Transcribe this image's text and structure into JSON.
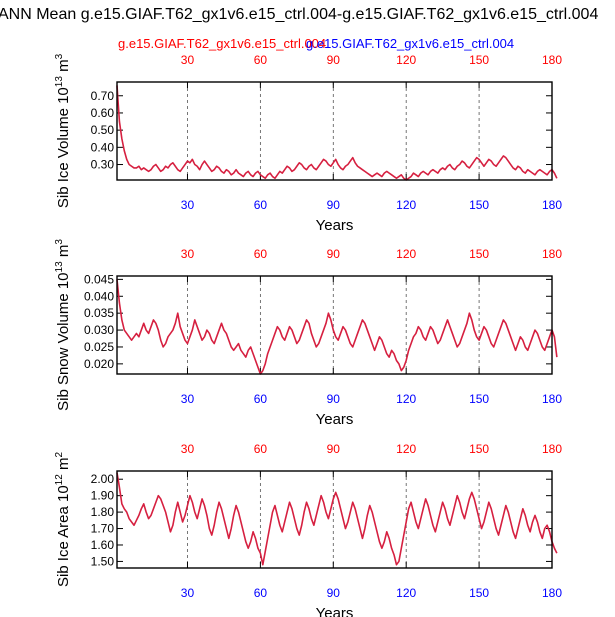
{
  "page": {
    "title": "ANN Mean g.e15.GIAF.T62_gx1v6.e15_ctrl.004-g.e15.GIAF.T62_gx1v6.e15_ctrl.004",
    "subtitle_left": "g.e15.GIAF.T62_gx1v6.e15_ctrl.004",
    "subtitle_right": "g.e15.GIAF.T62_gx1v6.e15_ctrl.004"
  },
  "colors": {
    "series": "#d62040",
    "top_axis": "#ff0000",
    "bottom_axis": "#0000ff",
    "gridline": "#555555"
  },
  "chart_data": [
    {
      "type": "line",
      "title": "",
      "xlabel": "Years",
      "ylabel": "Sib Ice Volume",
      "ylabel_unit_power": "13",
      "ylabel_unit_base": "10",
      "ylabel_unit": "m",
      "ylabel_unit_exp": "3",
      "xlim": [
        1,
        180
      ],
      "ylim": [
        0.21,
        0.78
      ],
      "xticks": [
        30,
        60,
        90,
        120,
        150,
        180
      ],
      "yticks": [
        0.3,
        0.4,
        0.5,
        0.6,
        0.7
      ],
      "ytick_labels": [
        "0.30",
        "0.40",
        "0.50",
        "0.60",
        "0.70"
      ],
      "grid": "dashed vertical at x ticks",
      "series": [
        {
          "name": "g.e15.GIAF.T62_gx1v6.e15_ctrl.004",
          "x_start": 1,
          "values": [
            0.76,
            0.55,
            0.45,
            0.38,
            0.33,
            0.3,
            0.29,
            0.28,
            0.28,
            0.29,
            0.27,
            0.28,
            0.27,
            0.26,
            0.27,
            0.29,
            0.3,
            0.28,
            0.26,
            0.27,
            0.29,
            0.28,
            0.3,
            0.31,
            0.29,
            0.27,
            0.26,
            0.28,
            0.3,
            0.32,
            0.31,
            0.33,
            0.3,
            0.29,
            0.27,
            0.3,
            0.32,
            0.3,
            0.28,
            0.26,
            0.27,
            0.29,
            0.28,
            0.26,
            0.25,
            0.27,
            0.26,
            0.24,
            0.25,
            0.27,
            0.25,
            0.24,
            0.23,
            0.25,
            0.26,
            0.24,
            0.23,
            0.25,
            0.26,
            0.24,
            0.23,
            0.22,
            0.24,
            0.25,
            0.23,
            0.22,
            0.24,
            0.26,
            0.25,
            0.27,
            0.29,
            0.28,
            0.26,
            0.27,
            0.29,
            0.31,
            0.3,
            0.28,
            0.27,
            0.29,
            0.3,
            0.28,
            0.27,
            0.29,
            0.31,
            0.33,
            0.32,
            0.3,
            0.29,
            0.31,
            0.33,
            0.3,
            0.28,
            0.27,
            0.29,
            0.3,
            0.32,
            0.34,
            0.31,
            0.29,
            0.28,
            0.27,
            0.26,
            0.25,
            0.24,
            0.23,
            0.24,
            0.25,
            0.24,
            0.23,
            0.25,
            0.26,
            0.25,
            0.24,
            0.23,
            0.22,
            0.23,
            0.24,
            0.22,
            0.21,
            0.22,
            0.23,
            0.25,
            0.24,
            0.23,
            0.25,
            0.26,
            0.25,
            0.24,
            0.26,
            0.27,
            0.26,
            0.25,
            0.27,
            0.28,
            0.27,
            0.29,
            0.3,
            0.28,
            0.27,
            0.29,
            0.3,
            0.32,
            0.31,
            0.29,
            0.28,
            0.3,
            0.32,
            0.34,
            0.33,
            0.31,
            0.29,
            0.31,
            0.33,
            0.32,
            0.3,
            0.29,
            0.31,
            0.33,
            0.35,
            0.34,
            0.32,
            0.3,
            0.28,
            0.27,
            0.29,
            0.28,
            0.26,
            0.25,
            0.27,
            0.26,
            0.25,
            0.24,
            0.26,
            0.27,
            0.26,
            0.25,
            0.24,
            0.26,
            0.27,
            0.25,
            0.22
          ]
        }
      ]
    },
    {
      "type": "line",
      "title": "",
      "xlabel": "Years",
      "ylabel": "Sib Snow Volume",
      "ylabel_unit_power": "13",
      "ylabel_unit_base": "10",
      "ylabel_unit": "m",
      "ylabel_unit_exp": "3",
      "xlim": [
        1,
        180
      ],
      "ylim": [
        0.017,
        0.046
      ],
      "xticks": [
        30,
        60,
        90,
        120,
        150,
        180
      ],
      "yticks": [
        0.02,
        0.025,
        0.03,
        0.035,
        0.04,
        0.045
      ],
      "ytick_labels": [
        "0.020",
        "0.025",
        "0.030",
        "0.035",
        "0.040",
        "0.045"
      ],
      "grid": "dashed vertical at x ticks",
      "series": [
        {
          "name": "g.e15.GIAF.T62_gx1v6.e15_ctrl.004",
          "x_start": 1,
          "values": [
            0.045,
            0.038,
            0.033,
            0.03,
            0.029,
            0.028,
            0.027,
            0.028,
            0.029,
            0.028,
            0.03,
            0.032,
            0.03,
            0.029,
            0.031,
            0.033,
            0.032,
            0.03,
            0.027,
            0.025,
            0.026,
            0.028,
            0.029,
            0.03,
            0.032,
            0.035,
            0.031,
            0.029,
            0.027,
            0.026,
            0.028,
            0.03,
            0.033,
            0.031,
            0.029,
            0.027,
            0.028,
            0.03,
            0.029,
            0.027,
            0.026,
            0.028,
            0.03,
            0.032,
            0.03,
            0.029,
            0.027,
            0.025,
            0.024,
            0.025,
            0.026,
            0.024,
            0.023,
            0.022,
            0.024,
            0.025,
            0.023,
            0.021,
            0.019,
            0.017,
            0.018,
            0.02,
            0.023,
            0.025,
            0.027,
            0.029,
            0.031,
            0.03,
            0.028,
            0.027,
            0.029,
            0.031,
            0.03,
            0.028,
            0.026,
            0.027,
            0.029,
            0.031,
            0.033,
            0.032,
            0.029,
            0.027,
            0.025,
            0.026,
            0.028,
            0.03,
            0.032,
            0.035,
            0.033,
            0.03,
            0.028,
            0.027,
            0.029,
            0.031,
            0.03,
            0.028,
            0.026,
            0.025,
            0.027,
            0.029,
            0.031,
            0.033,
            0.032,
            0.03,
            0.028,
            0.026,
            0.024,
            0.026,
            0.028,
            0.027,
            0.025,
            0.023,
            0.022,
            0.024,
            0.023,
            0.021,
            0.02,
            0.018,
            0.019,
            0.021,
            0.024,
            0.026,
            0.028,
            0.029,
            0.031,
            0.03,
            0.028,
            0.027,
            0.029,
            0.031,
            0.03,
            0.028,
            0.026,
            0.027,
            0.029,
            0.031,
            0.033,
            0.031,
            0.029,
            0.027,
            0.025,
            0.026,
            0.028,
            0.03,
            0.032,
            0.035,
            0.033,
            0.03,
            0.028,
            0.027,
            0.029,
            0.031,
            0.03,
            0.028,
            0.026,
            0.025,
            0.027,
            0.029,
            0.031,
            0.033,
            0.032,
            0.03,
            0.028,
            0.026,
            0.024,
            0.026,
            0.028,
            0.027,
            0.025,
            0.024,
            0.026,
            0.028,
            0.03,
            0.029,
            0.027,
            0.025,
            0.024,
            0.026,
            0.028,
            0.03,
            0.028,
            0.022
          ]
        }
      ]
    },
    {
      "type": "line",
      "title": "",
      "xlabel": "Years",
      "ylabel": "Sib Ice Area",
      "ylabel_unit_power": "12",
      "ylabel_unit_base": "10",
      "ylabel_unit": "m",
      "ylabel_unit_exp": "2",
      "xlim": [
        1,
        180
      ],
      "ylim": [
        1.46,
        2.05
      ],
      "xticks": [
        30,
        60,
        90,
        120,
        150,
        180
      ],
      "yticks": [
        1.5,
        1.6,
        1.7,
        1.8,
        1.9,
        2.0
      ],
      "ytick_labels": [
        "1.50",
        "1.60",
        "1.70",
        "1.80",
        "1.90",
        "2.00"
      ],
      "grid": "dashed vertical at x ticks",
      "series": [
        {
          "name": "g.e15.GIAF.T62_gx1v6.e15_ctrl.004",
          "x_start": 1,
          "values": [
            2.04,
            1.95,
            1.85,
            1.82,
            1.8,
            1.76,
            1.74,
            1.72,
            1.75,
            1.78,
            1.82,
            1.85,
            1.8,
            1.76,
            1.78,
            1.82,
            1.86,
            1.9,
            1.88,
            1.84,
            1.8,
            1.74,
            1.68,
            1.72,
            1.8,
            1.86,
            1.8,
            1.74,
            1.78,
            1.84,
            1.9,
            1.86,
            1.8,
            1.76,
            1.82,
            1.88,
            1.84,
            1.78,
            1.7,
            1.66,
            1.72,
            1.8,
            1.86,
            1.82,
            1.76,
            1.7,
            1.64,
            1.7,
            1.78,
            1.84,
            1.8,
            1.74,
            1.68,
            1.62,
            1.58,
            1.62,
            1.68,
            1.64,
            1.58,
            1.55,
            1.48,
            1.56,
            1.64,
            1.72,
            1.8,
            1.84,
            1.78,
            1.72,
            1.68,
            1.74,
            1.8,
            1.86,
            1.82,
            1.76,
            1.7,
            1.66,
            1.72,
            1.8,
            1.86,
            1.82,
            1.76,
            1.72,
            1.78,
            1.84,
            1.9,
            1.86,
            1.8,
            1.76,
            1.82,
            1.88,
            1.92,
            1.88,
            1.82,
            1.76,
            1.7,
            1.74,
            1.8,
            1.86,
            1.82,
            1.76,
            1.7,
            1.64,
            1.7,
            1.78,
            1.84,
            1.8,
            1.74,
            1.68,
            1.62,
            1.58,
            1.62,
            1.68,
            1.64,
            1.58,
            1.54,
            1.48,
            1.5,
            1.58,
            1.66,
            1.74,
            1.82,
            1.86,
            1.8,
            1.74,
            1.7,
            1.76,
            1.82,
            1.88,
            1.84,
            1.78,
            1.72,
            1.68,
            1.74,
            1.8,
            1.86,
            1.82,
            1.76,
            1.72,
            1.78,
            1.84,
            1.9,
            1.86,
            1.8,
            1.76,
            1.82,
            1.88,
            1.92,
            1.88,
            1.82,
            1.76,
            1.7,
            1.74,
            1.8,
            1.86,
            1.82,
            1.76,
            1.7,
            1.66,
            1.72,
            1.78,
            1.84,
            1.8,
            1.74,
            1.68,
            1.64,
            1.7,
            1.76,
            1.82,
            1.78,
            1.72,
            1.68,
            1.74,
            1.78,
            1.74,
            1.68,
            1.64,
            1.7,
            1.72,
            1.68,
            1.62,
            1.58,
            1.55
          ]
        }
      ]
    }
  ]
}
